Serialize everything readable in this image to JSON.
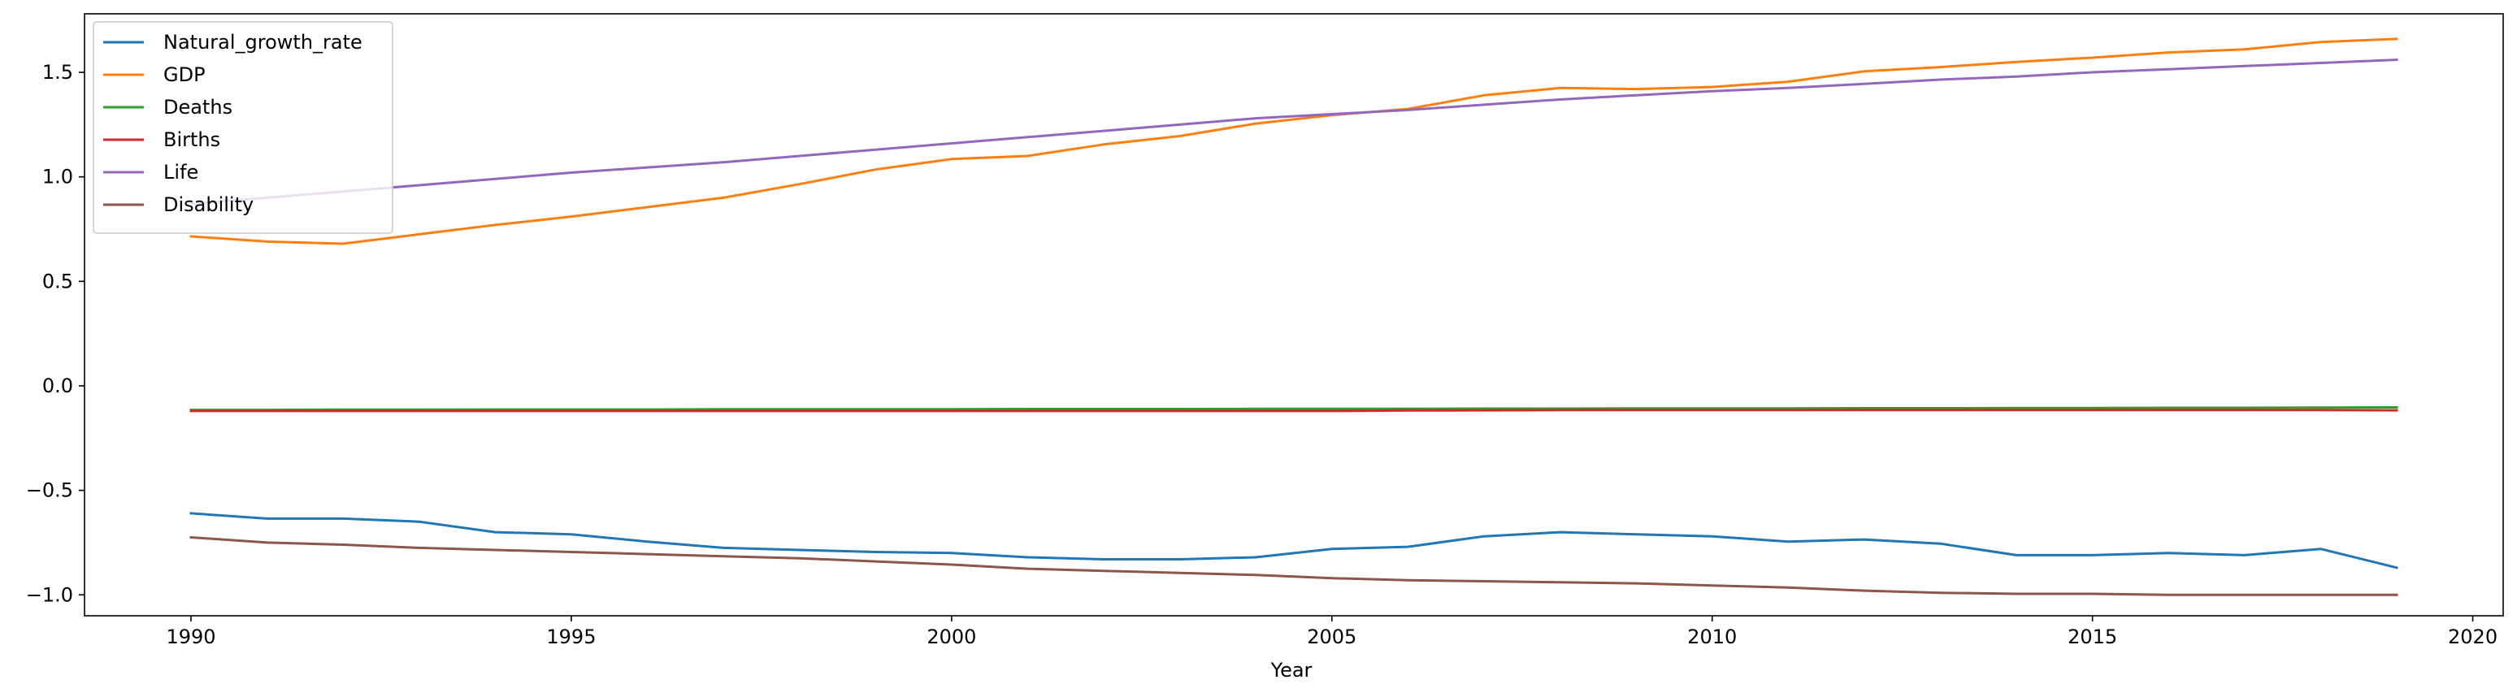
{
  "chart_data": {
    "type": "line",
    "title": "",
    "xlabel": "Year",
    "ylabel": "",
    "xlim": [
      1988.6,
      2020.4
    ],
    "ylim": [
      -1.1,
      1.78
    ],
    "xticks": [
      1990,
      1995,
      2000,
      2005,
      2010,
      2015,
      2020
    ],
    "yticks": [
      -1.0,
      -0.5,
      0.0,
      0.5,
      1.0,
      1.5
    ],
    "ytick_labels": [
      "−1.0",
      "−0.5",
      "0.0",
      "0.5",
      "1.0",
      "1.5"
    ],
    "grid": false,
    "legend_position": "top-left",
    "x": [
      1990,
      1991,
      1992,
      1993,
      1994,
      1995,
      1996,
      1997,
      1998,
      1999,
      2000,
      2001,
      2002,
      2003,
      2004,
      2005,
      2006,
      2007,
      2008,
      2009,
      2010,
      2011,
      2012,
      2013,
      2014,
      2015,
      2016,
      2017,
      2018,
      2019
    ],
    "series": [
      {
        "name": "Natural_growth_rate",
        "color": "#1f77b4",
        "values": [
          -0.61,
          -0.635,
          -0.635,
          -0.65,
          -0.7,
          -0.71,
          -0.745,
          -0.775,
          -0.785,
          -0.795,
          -0.8,
          -0.82,
          -0.83,
          -0.83,
          -0.82,
          -0.78,
          -0.77,
          -0.72,
          -0.7,
          -0.71,
          -0.72,
          -0.745,
          -0.735,
          -0.755,
          -0.81,
          -0.81,
          -0.8,
          -0.81,
          -0.78,
          -0.87
        ]
      },
      {
        "name": "GDP",
        "color": "#ff7f0e",
        "values": [
          0.715,
          0.69,
          0.68,
          0.725,
          0.77,
          0.81,
          0.855,
          0.9,
          0.965,
          1.035,
          1.085,
          1.1,
          1.155,
          1.195,
          1.255,
          1.295,
          1.325,
          1.39,
          1.425,
          1.42,
          1.43,
          1.455,
          1.505,
          1.525,
          1.55,
          1.57,
          1.595,
          1.61,
          1.645,
          1.66
        ]
      },
      {
        "name": "Deaths",
        "color": "#2ca02c",
        "values": [
          -0.115,
          -0.115,
          -0.114,
          -0.114,
          -0.113,
          -0.113,
          -0.113,
          -0.112,
          -0.112,
          -0.112,
          -0.112,
          -0.111,
          -0.111,
          -0.111,
          -0.11,
          -0.11,
          -0.11,
          -0.109,
          -0.109,
          -0.108,
          -0.108,
          -0.108,
          -0.107,
          -0.107,
          -0.106,
          -0.106,
          -0.105,
          -0.105,
          -0.104,
          -0.103
        ]
      },
      {
        "name": "Births",
        "color": "#d62728",
        "values": [
          -0.12,
          -0.12,
          -0.12,
          -0.12,
          -0.12,
          -0.12,
          -0.12,
          -0.12,
          -0.12,
          -0.12,
          -0.12,
          -0.12,
          -0.12,
          -0.12,
          -0.12,
          -0.12,
          -0.118,
          -0.117,
          -0.116,
          -0.116,
          -0.116,
          -0.116,
          -0.116,
          -0.116,
          -0.116,
          -0.116,
          -0.116,
          -0.116,
          -0.116,
          -0.117
        ]
      },
      {
        "name": "Life",
        "color": "#9467bd",
        "values": [
          0.87,
          0.9,
          0.93,
          0.96,
          0.99,
          1.02,
          1.045,
          1.07,
          1.1,
          1.13,
          1.16,
          1.19,
          1.22,
          1.25,
          1.28,
          1.3,
          1.32,
          1.345,
          1.37,
          1.39,
          1.41,
          1.425,
          1.445,
          1.465,
          1.48,
          1.5,
          1.515,
          1.53,
          1.545,
          1.56
        ]
      },
      {
        "name": "Disability",
        "color": "#8c564b",
        "values": [
          -0.725,
          -0.75,
          -0.76,
          -0.775,
          -0.785,
          -0.795,
          -0.805,
          -0.815,
          -0.825,
          -0.84,
          -0.855,
          -0.875,
          -0.885,
          -0.895,
          -0.905,
          -0.92,
          -0.93,
          -0.935,
          -0.94,
          -0.945,
          -0.955,
          -0.965,
          -0.98,
          -0.99,
          -0.995,
          -0.995,
          -1.0,
          -1.0,
          -1.0,
          -1.0
        ]
      }
    ]
  }
}
